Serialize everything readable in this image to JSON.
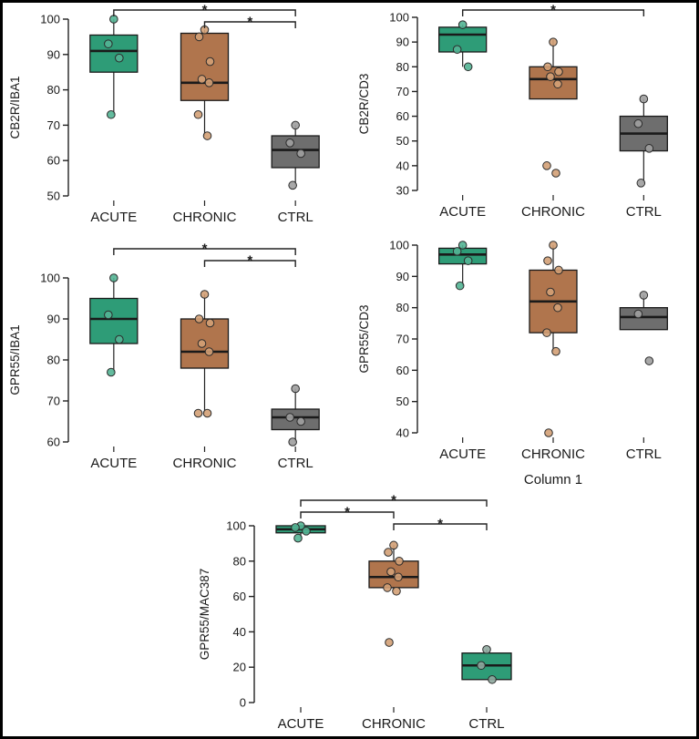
{
  "figure": {
    "description": "Five box plots comparing ACUTE, CHRONIC and CTRL groups",
    "border_color": "#000000",
    "background": "#ffffff"
  },
  "palette": {
    "acute_green": "#2E9C77",
    "chronic_brown": "#B0754D",
    "ctrl_gray": "#6E6E6E"
  },
  "chart_data": [
    {
      "type": "box",
      "ylabel": "CB2R/IBA1",
      "xlabel": "",
      "ylim": [
        50,
        100
      ],
      "yticks": [
        50,
        60,
        70,
        80,
        90,
        100
      ],
      "categories": [
        "ACUTE",
        "CHRONIC",
        "CTRL"
      ],
      "groups": [
        {
          "name": "ACUTE",
          "color": "#2E9C77",
          "point_color": "#53B493",
          "box": {
            "min": 73,
            "q1": 85,
            "median": 91,
            "q3": 95.5,
            "max": 100
          },
          "points": [
            100,
            93,
            89,
            73
          ]
        },
        {
          "name": "CHRONIC",
          "color": "#B0754D",
          "point_color": "#D3A075",
          "box": {
            "min": 67,
            "q1": 77,
            "median": 82,
            "q3": 96,
            "max": 97
          },
          "points": [
            97,
            95,
            88,
            83,
            82,
            73,
            67
          ]
        },
        {
          "name": "CTRL",
          "color": "#6E6E6E",
          "point_color": "#9E9E9E",
          "box": {
            "min": 53,
            "q1": 58,
            "median": 63,
            "q3": 67,
            "max": 70
          },
          "points": [
            70,
            65,
            62,
            53
          ]
        }
      ],
      "brackets": [
        {
          "from": 0,
          "to": 2,
          "label": "*",
          "level": 1
        },
        {
          "from": 1,
          "to": 2,
          "label": "*",
          "level": 2
        }
      ]
    },
    {
      "type": "box",
      "ylabel": "CB2R/CD3",
      "xlabel": "",
      "ylim": [
        30,
        100
      ],
      "yticks": [
        30,
        40,
        50,
        60,
        70,
        80,
        90,
        100
      ],
      "categories": [
        "ACUTE",
        "CHRONIC",
        "CTRL"
      ],
      "groups": [
        {
          "name": "ACUTE",
          "color": "#2E9C77",
          "point_color": "#53B493",
          "box": {
            "min": 80,
            "q1": 86,
            "median": 93,
            "q3": 96,
            "max": 97
          },
          "points": [
            97,
            87,
            80
          ]
        },
        {
          "name": "CHRONIC",
          "color": "#B0754D",
          "point_color": "#D3A075",
          "box": {
            "min": 67,
            "q1": 67,
            "median": 75,
            "q3": 80,
            "max": 91
          },
          "points": [
            90,
            80,
            78,
            76,
            73,
            40,
            37
          ]
        },
        {
          "name": "CTRL",
          "color": "#6E6E6E",
          "point_color": "#9E9E9E",
          "box": {
            "min": 33,
            "q1": 46,
            "median": 53,
            "q3": 60,
            "max": 67
          },
          "points": [
            67,
            57,
            47,
            33
          ]
        }
      ],
      "brackets": [
        {
          "from": 0,
          "to": 2,
          "label": "*",
          "level": 1
        }
      ]
    },
    {
      "type": "box",
      "ylabel": "GPR55/IBA1",
      "xlabel": "",
      "ylim": [
        60,
        100
      ],
      "yticks": [
        60,
        70,
        80,
        90,
        100
      ],
      "categories": [
        "ACUTE",
        "CHRONIC",
        "CTRL"
      ],
      "groups": [
        {
          "name": "ACUTE",
          "color": "#2E9C77",
          "point_color": "#53B493",
          "box": {
            "min": 77,
            "q1": 84,
            "median": 90,
            "q3": 95,
            "max": 100
          },
          "points": [
            100,
            91,
            85,
            77
          ]
        },
        {
          "name": "CHRONIC",
          "color": "#B0754D",
          "point_color": "#D3A075",
          "box": {
            "min": 67,
            "q1": 78,
            "median": 82,
            "q3": 90,
            "max": 96
          },
          "points": [
            96,
            90,
            89,
            84,
            82,
            67,
            67
          ]
        },
        {
          "name": "CTRL",
          "color": "#6E6E6E",
          "point_color": "#9E9E9E",
          "box": {
            "min": 60,
            "q1": 63,
            "median": 66,
            "q3": 68,
            "max": 73
          },
          "points": [
            73,
            66,
            65,
            60
          ]
        }
      ],
      "brackets": [
        {
          "from": 0,
          "to": 2,
          "label": "*",
          "level": 1
        },
        {
          "from": 1,
          "to": 2,
          "label": "*",
          "level": 2
        }
      ]
    },
    {
      "type": "box",
      "ylabel": "GPR55/CD3",
      "xlabel": "Column 1",
      "ylim": [
        40,
        100
      ],
      "yticks": [
        40,
        50,
        60,
        70,
        80,
        90,
        100
      ],
      "categories": [
        "ACUTE",
        "CHRONIC",
        "CTRL"
      ],
      "groups": [
        {
          "name": "ACUTE",
          "color": "#2E9C77",
          "point_color": "#53B493",
          "box": {
            "min": 87,
            "q1": 94,
            "median": 97,
            "q3": 99,
            "max": 100
          },
          "points": [
            100,
            98,
            95,
            87
          ]
        },
        {
          "name": "CHRONIC",
          "color": "#B0754D",
          "point_color": "#D3A075",
          "box": {
            "min": 66,
            "q1": 72,
            "median": 82,
            "q3": 92,
            "max": 100
          },
          "points": [
            100,
            95,
            92,
            85,
            80,
            72,
            66,
            40
          ]
        },
        {
          "name": "CTRL",
          "color": "#6E6E6E",
          "point_color": "#9E9E9E",
          "box": {
            "min": 73,
            "q1": 73,
            "median": 77,
            "q3": 80,
            "max": 84
          },
          "points": [
            84,
            78,
            63
          ]
        }
      ],
      "brackets": []
    },
    {
      "type": "box",
      "ylabel": "GPR55/MAC387",
      "xlabel": "",
      "ylim": [
        0,
        100
      ],
      "yticks": [
        0,
        20,
        40,
        60,
        80,
        100
      ],
      "categories": [
        "ACUTE",
        "CHRONIC",
        "CTRL"
      ],
      "groups": [
        {
          "name": "ACUTE",
          "color": "#2E9C77",
          "point_color": "#53B493",
          "box": {
            "min": 93,
            "q1": 96,
            "median": 98,
            "q3": 100,
            "max": 100
          },
          "points": [
            100,
            99,
            97,
            93
          ]
        },
        {
          "name": "CHRONIC",
          "color": "#B0754D",
          "point_color": "#D3A075",
          "box": {
            "min": 63,
            "q1": 65,
            "median": 71,
            "q3": 80,
            "max": 89
          },
          "points": [
            89,
            85,
            80,
            74,
            71,
            65,
            63,
            34
          ]
        },
        {
          "name": "CTRL",
          "color": "#2E9C77",
          "point_color": "#8FA89F",
          "box": {
            "min": 13,
            "q1": 13,
            "median": 21,
            "q3": 28,
            "max": 30
          },
          "points": [
            30,
            21,
            13
          ]
        }
      ],
      "brackets": [
        {
          "from": 0,
          "to": 2,
          "label": "*",
          "level": 1
        },
        {
          "from": 0,
          "to": 1,
          "label": "*",
          "level": 2
        },
        {
          "from": 1,
          "to": 2,
          "label": "*",
          "level": 3
        }
      ]
    }
  ]
}
